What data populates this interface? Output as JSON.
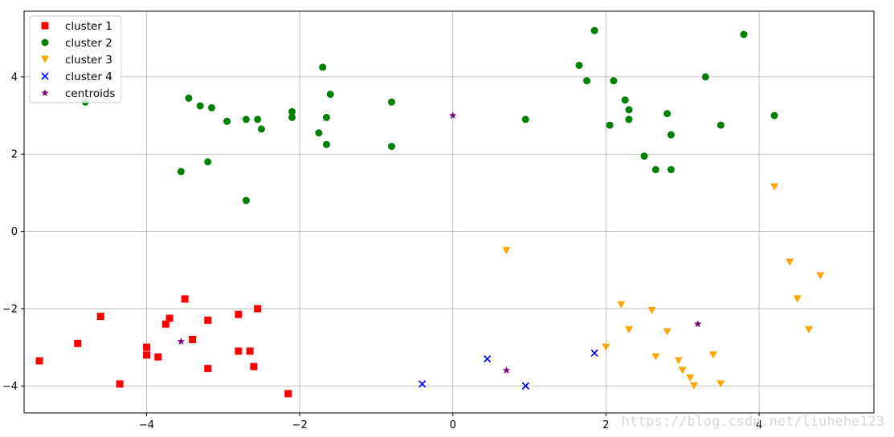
{
  "chart_data": {
    "type": "scatter",
    "xlim": [
      -5.6,
      5.5
    ],
    "ylim": [
      -4.7,
      5.7
    ],
    "x_ticks": [
      -4,
      -2,
      0,
      2,
      4
    ],
    "y_ticks": [
      -4,
      -2,
      0,
      2,
      4
    ],
    "x_tick_labels": [
      "−4",
      "−2",
      "0",
      "2",
      "4"
    ],
    "y_tick_labels": [
      "−4",
      "−2",
      "0",
      "2",
      "4"
    ],
    "grid": true,
    "legend_position": "upper-left",
    "series": [
      {
        "name": "cluster 1",
        "marker": "square",
        "color": "#ff0000",
        "points": [
          [
            -5.4,
            -3.35
          ],
          [
            -4.9,
            -2.9
          ],
          [
            -4.6,
            -2.2
          ],
          [
            -4.35,
            -3.95
          ],
          [
            -4.0,
            -3.0
          ],
          [
            -4.0,
            -3.2
          ],
          [
            -3.85,
            -3.25
          ],
          [
            -3.75,
            -2.4
          ],
          [
            -3.7,
            -2.25
          ],
          [
            -3.5,
            -1.75
          ],
          [
            -3.4,
            -2.8
          ],
          [
            -3.2,
            -2.3
          ],
          [
            -3.2,
            -3.55
          ],
          [
            -2.8,
            -2.15
          ],
          [
            -2.8,
            -3.1
          ],
          [
            -2.65,
            -3.1
          ],
          [
            -2.6,
            -3.5
          ],
          [
            -2.55,
            -2.0
          ],
          [
            -2.15,
            -4.2
          ]
        ]
      },
      {
        "name": "cluster 2",
        "marker": "circle",
        "color": "#008000",
        "points": [
          [
            -4.8,
            3.35
          ],
          [
            -3.55,
            1.55
          ],
          [
            -3.45,
            3.45
          ],
          [
            -3.3,
            3.25
          ],
          [
            -3.2,
            1.8
          ],
          [
            -3.15,
            3.2
          ],
          [
            -2.95,
            2.85
          ],
          [
            -2.7,
            2.9
          ],
          [
            -2.7,
            0.8
          ],
          [
            -2.55,
            2.9
          ],
          [
            -2.5,
            2.65
          ],
          [
            -2.1,
            3.1
          ],
          [
            -2.1,
            2.95
          ],
          [
            -1.75,
            2.55
          ],
          [
            -1.7,
            4.25
          ],
          [
            -1.65,
            2.95
          ],
          [
            -1.65,
            2.25
          ],
          [
            -1.6,
            3.55
          ],
          [
            -0.8,
            3.35
          ],
          [
            -0.8,
            2.2
          ],
          [
            0.95,
            2.9
          ],
          [
            1.65,
            4.3
          ],
          [
            1.75,
            3.9
          ],
          [
            1.85,
            5.2
          ],
          [
            2.05,
            2.75
          ],
          [
            2.1,
            3.9
          ],
          [
            2.25,
            3.4
          ],
          [
            2.3,
            3.15
          ],
          [
            2.3,
            2.9
          ],
          [
            2.5,
            1.95
          ],
          [
            2.65,
            1.6
          ],
          [
            2.8,
            3.05
          ],
          [
            2.85,
            1.6
          ],
          [
            2.85,
            2.5
          ],
          [
            3.3,
            4.0
          ],
          [
            3.5,
            2.75
          ],
          [
            3.8,
            5.1
          ],
          [
            4.2,
            3.0
          ]
        ]
      },
      {
        "name": "cluster 3",
        "marker": "triangle-down",
        "color": "#ffa500",
        "points": [
          [
            0.7,
            -0.5
          ],
          [
            2.0,
            -3.0
          ],
          [
            2.2,
            -1.9
          ],
          [
            2.3,
            -2.55
          ],
          [
            2.6,
            -2.05
          ],
          [
            2.65,
            -3.25
          ],
          [
            2.8,
            -2.6
          ],
          [
            2.95,
            -3.35
          ],
          [
            3.0,
            -3.6
          ],
          [
            3.1,
            -3.8
          ],
          [
            3.15,
            -4.0
          ],
          [
            3.4,
            -3.2
          ],
          [
            3.5,
            -3.95
          ],
          [
            4.2,
            1.15
          ],
          [
            4.4,
            -0.8
          ],
          [
            4.5,
            -1.75
          ],
          [
            4.65,
            -2.55
          ],
          [
            4.8,
            -1.15
          ]
        ]
      },
      {
        "name": "cluster 4",
        "marker": "x",
        "color": "#0000ff",
        "points": [
          [
            -0.4,
            -3.95
          ],
          [
            0.45,
            -3.3
          ],
          [
            0.95,
            -4.0
          ],
          [
            1.85,
            -3.15
          ]
        ]
      },
      {
        "name": "centroids",
        "marker": "star",
        "color": "#800080",
        "points": [
          [
            -3.55,
            -2.85
          ],
          [
            0.0,
            3.0
          ],
          [
            0.7,
            -3.6
          ],
          [
            3.2,
            -2.4
          ]
        ]
      }
    ]
  },
  "watermark": {
    "text": "https://blog.csdn.net/liuhehe123"
  }
}
